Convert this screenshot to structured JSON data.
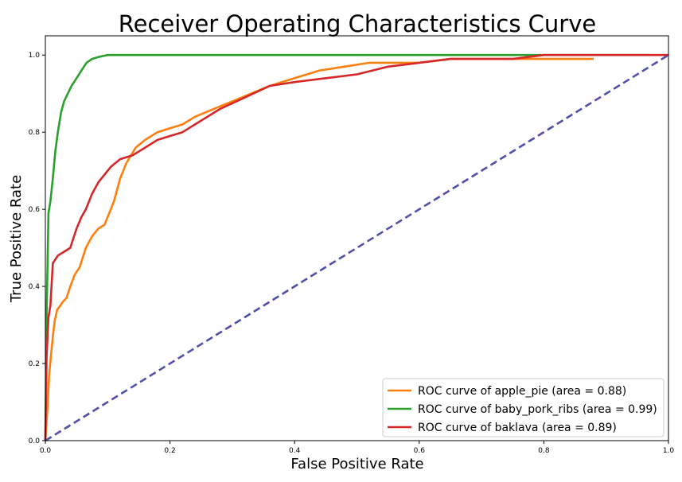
{
  "chart_data": {
    "type": "line",
    "title": "Receiver Operating Characteristics Curve",
    "xlabel": "False Positive Rate",
    "ylabel": "True Positive Rate",
    "xlim": [
      0.0,
      1.0
    ],
    "ylim": [
      0.0,
      1.05
    ],
    "xticks": [
      "0.0",
      "0.2",
      "0.4",
      "0.6",
      "0.8",
      "1.0"
    ],
    "yticks": [
      "0.0",
      "0.2",
      "0.4",
      "0.6",
      "0.8",
      "1.0"
    ],
    "grid": false,
    "legend_position": "lower-right",
    "series": [
      {
        "name": "ROC curve of apple_pie (area = 0.88)",
        "color": "#ff7f0e",
        "style": "solid",
        "x": [
          0.0,
          0.004,
          0.006,
          0.009,
          0.012,
          0.015,
          0.019,
          0.024,
          0.028,
          0.034,
          0.04,
          0.047,
          0.055,
          0.065,
          0.075,
          0.085,
          0.095,
          0.105,
          0.11,
          0.12,
          0.13,
          0.145,
          0.16,
          0.18,
          0.2,
          0.22,
          0.24,
          0.27,
          0.3,
          0.33,
          0.36,
          0.4,
          0.44,
          0.48,
          0.52,
          0.56,
          0.6,
          0.65,
          0.7,
          0.75,
          0.8,
          0.85,
          0.88
        ],
        "y": [
          0.0,
          0.1,
          0.17,
          0.22,
          0.27,
          0.31,
          0.34,
          0.35,
          0.36,
          0.37,
          0.4,
          0.43,
          0.45,
          0.5,
          0.53,
          0.55,
          0.56,
          0.6,
          0.62,
          0.68,
          0.72,
          0.76,
          0.78,
          0.8,
          0.81,
          0.82,
          0.84,
          0.86,
          0.88,
          0.9,
          0.92,
          0.94,
          0.96,
          0.97,
          0.98,
          0.98,
          0.98,
          0.99,
          0.99,
          0.99,
          0.99,
          0.99,
          0.99
        ]
      },
      {
        "name": "ROC curve of baby_pork_ribs (area = 0.99)",
        "color": "#2ca02c",
        "style": "solid",
        "x": [
          0.0,
          0.002,
          0.005,
          0.008,
          0.012,
          0.016,
          0.02,
          0.025,
          0.03,
          0.036,
          0.042,
          0.05,
          0.058,
          0.066,
          0.075,
          0.085,
          0.1,
          0.15,
          0.3,
          0.5,
          0.7,
          0.9,
          0.97
        ],
        "y": [
          0.0,
          0.33,
          0.59,
          0.62,
          0.68,
          0.75,
          0.8,
          0.85,
          0.88,
          0.9,
          0.92,
          0.94,
          0.96,
          0.98,
          0.99,
          0.995,
          1.0,
          1.0,
          1.0,
          1.0,
          1.0,
          1.0,
          1.0
        ]
      },
      {
        "name": "ROC curve of baklava (area = 0.89)",
        "color": "#d62728",
        "style": "solid",
        "x": [
          0.0,
          0.002,
          0.005,
          0.008,
          0.012,
          0.02,
          0.03,
          0.04,
          0.05,
          0.058,
          0.065,
          0.075,
          0.085,
          0.095,
          0.105,
          0.12,
          0.14,
          0.16,
          0.18,
          0.2,
          0.22,
          0.25,
          0.28,
          0.32,
          0.36,
          0.4,
          0.45,
          0.5,
          0.55,
          0.6,
          0.65,
          0.7,
          0.75,
          0.8,
          0.85,
          0.9,
          0.96,
          1.0
        ],
        "y": [
          0.0,
          0.22,
          0.32,
          0.35,
          0.46,
          0.48,
          0.49,
          0.5,
          0.55,
          0.58,
          0.6,
          0.64,
          0.67,
          0.69,
          0.71,
          0.73,
          0.74,
          0.76,
          0.78,
          0.79,
          0.8,
          0.83,
          0.86,
          0.89,
          0.92,
          0.93,
          0.94,
          0.95,
          0.97,
          0.98,
          0.99,
          0.99,
          0.99,
          1.0,
          1.0,
          1.0,
          1.0,
          1.0
        ]
      },
      {
        "name": "",
        "color": "#5050a8",
        "style": "dashed",
        "x": [
          0.0,
          1.0
        ],
        "y": [
          0.0,
          1.0
        ]
      }
    ]
  }
}
